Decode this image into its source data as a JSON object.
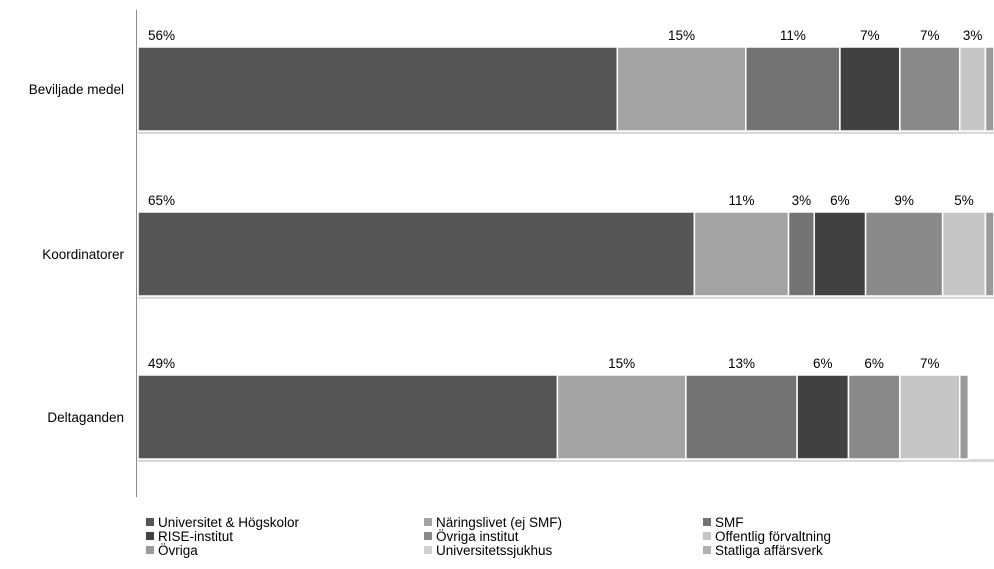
{
  "chart_data": {
    "type": "bar",
    "orientation": "horizontal",
    "stacked": true,
    "normalized": true,
    "title": "",
    "xlabel": "",
    "ylabel": "",
    "xlim": [
      0,
      100
    ],
    "grid": false,
    "legend_position": "bottom",
    "categories": [
      "Beviljade medel",
      "Koordinatorer",
      "Deltaganden"
    ],
    "series": [
      {
        "name": "Universitet & Högskolor",
        "color": "#555555",
        "values": [
          56,
          65,
          49
        ],
        "labels": [
          "56%",
          "65%",
          "49%"
        ]
      },
      {
        "name": "Näringslivet (ej SMF)",
        "color": "#a3a3a3",
        "values": [
          15,
          11,
          15
        ],
        "labels": [
          "15%",
          "11%",
          "15%"
        ]
      },
      {
        "name": "SMF",
        "color": "#737373",
        "values": [
          11,
          3,
          13
        ],
        "labels": [
          "11%",
          "3%",
          "13%"
        ]
      },
      {
        "name": "RISE-institut",
        "color": "#414141",
        "values": [
          7,
          6,
          6
        ],
        "labels": [
          "7%",
          "6%",
          "6%"
        ]
      },
      {
        "name": "Övriga institut",
        "color": "#8a8a8a",
        "values": [
          7,
          9,
          6
        ],
        "labels": [
          "7%",
          "9%",
          "6%"
        ]
      },
      {
        "name": "Offentlig förvaltning",
        "color": "#c6c6c6",
        "values": [
          3,
          5,
          7
        ],
        "labels": [
          "3%",
          "5%",
          "7%"
        ]
      },
      {
        "name": "Övriga",
        "color": "#9a9a9a",
        "values": [
          1,
          1,
          1
        ],
        "labels": [
          "",
          "",
          ""
        ]
      },
      {
        "name": "Universitetssjukhus",
        "color": "#d0d0d0",
        "values": [
          0,
          0,
          0
        ],
        "labels": [
          "",
          "",
          ""
        ]
      },
      {
        "name": "Statliga affärsverk",
        "color": "#b0b0b0",
        "values": [
          0,
          0,
          0
        ],
        "labels": [
          "",
          "",
          ""
        ]
      }
    ]
  }
}
